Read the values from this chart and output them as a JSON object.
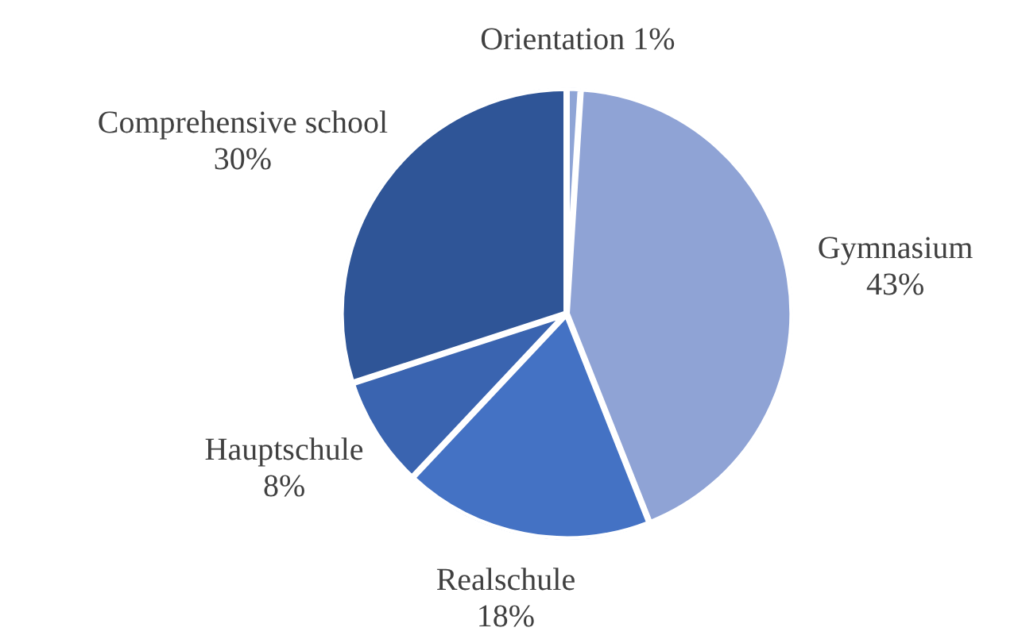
{
  "chart_data": {
    "type": "pie",
    "categories": [
      "Orientation",
      "Gymnasium",
      "Realschule",
      "Hauptschule",
      "Comprehensive school"
    ],
    "values": [
      1,
      43,
      18,
      8,
      30
    ],
    "value_labels": [
      "1%",
      "43%",
      "18%",
      "8%",
      "30%"
    ],
    "colors": [
      "#8fa5d6",
      "#8fa3d5",
      "#4472c4",
      "#3a64b0",
      "#2f5597"
    ]
  }
}
